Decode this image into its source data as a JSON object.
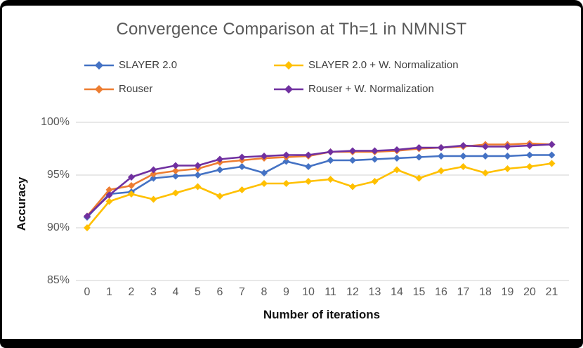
{
  "chart_data": {
    "type": "line",
    "title": "Convergence Comparison at Th=1 in NMNIST",
    "xlabel": "Number of iterations",
    "ylabel": "Accuracy",
    "x": [
      0,
      1,
      2,
      3,
      4,
      5,
      6,
      7,
      8,
      9,
      10,
      11,
      12,
      13,
      14,
      15,
      16,
      17,
      18,
      19,
      20,
      21
    ],
    "y_ticks": [
      {
        "label": "100%",
        "value": 100
      },
      {
        "label": "95%",
        "value": 95
      },
      {
        "label": "90%",
        "value": 90
      },
      {
        "label": "85%",
        "value": 85
      }
    ],
    "ylim": [
      85,
      100
    ],
    "grid": true,
    "legend_position": "top",
    "marker": "diamond",
    "gridline_color": "#d9d9d9",
    "series": [
      {
        "name": "SLAYER 2.0",
        "color": "#4472C4",
        "values": [
          91.0,
          93.2,
          93.4,
          94.7,
          94.9,
          95.0,
          95.5,
          95.8,
          95.2,
          96.3,
          95.8,
          96.4,
          96.4,
          96.5,
          96.6,
          96.7,
          96.8,
          96.8,
          96.8,
          96.8,
          96.9,
          96.9
        ]
      },
      {
        "name": "SLAYER 2.0 + W. Normalization",
        "color": "#FFC000",
        "values": [
          90.0,
          92.5,
          93.2,
          92.7,
          93.3,
          93.9,
          93.0,
          93.6,
          94.2,
          94.2,
          94.4,
          94.6,
          93.9,
          94.4,
          95.5,
          94.7,
          95.4,
          95.8,
          95.2,
          95.6,
          95.8,
          96.1
        ]
      },
      {
        "name": "Rouser",
        "color": "#ED7D31",
        "values": [
          91.1,
          93.6,
          94.0,
          95.1,
          95.4,
          95.6,
          96.2,
          96.4,
          96.6,
          96.7,
          96.8,
          97.2,
          97.2,
          97.2,
          97.3,
          97.5,
          97.6,
          97.7,
          97.9,
          97.9,
          98.0,
          97.9
        ]
      },
      {
        "name": "Rouser + W. Normalization",
        "color": "#7030A0",
        "values": [
          91.1,
          93.1,
          94.8,
          95.5,
          95.9,
          95.9,
          96.5,
          96.7,
          96.8,
          96.9,
          96.9,
          97.2,
          97.3,
          97.3,
          97.4,
          97.6,
          97.6,
          97.8,
          97.7,
          97.7,
          97.8,
          97.9
        ]
      }
    ]
  }
}
